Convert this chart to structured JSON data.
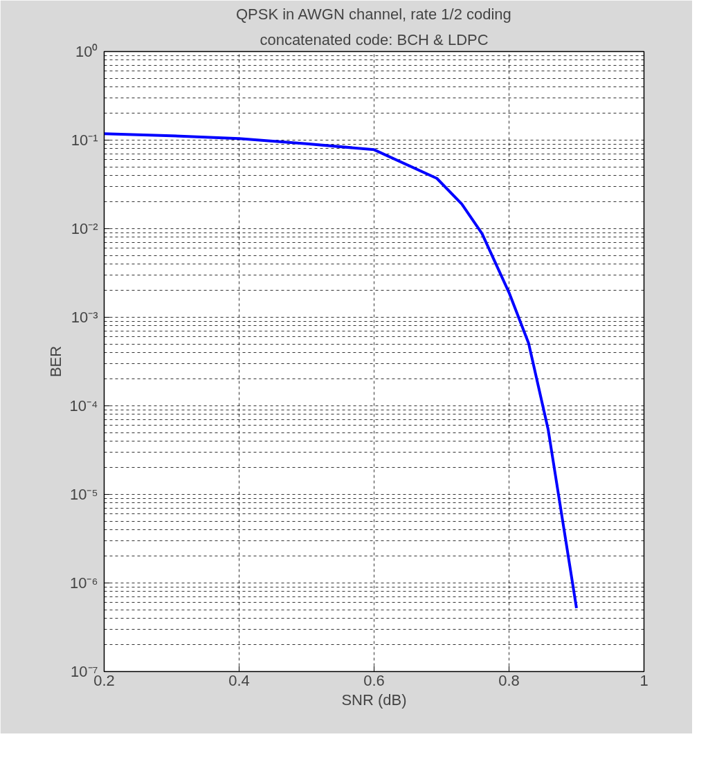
{
  "chart_data": {
    "type": "line",
    "title": "QPSK in AWGN channel, rate 1/2 coding",
    "subtitle": "concatenated code: BCH & LDPC",
    "xlabel": "SNR (dB)",
    "ylabel": "BER",
    "x": [
      0.2,
      0.3,
      0.4,
      0.5,
      0.6,
      0.693,
      0.73,
      0.76,
      0.8,
      0.829,
      0.858,
      0.9
    ],
    "series": [
      {
        "color": "#0000ff",
        "values": [
          0.118,
          0.112,
          0.104,
          0.091,
          0.078,
          0.037,
          0.019,
          0.0088,
          0.0019,
          0.00051,
          5.4e-05,
          5.2e-07
        ]
      }
    ],
    "log": "y",
    "grid": true,
    "line_style": "solid",
    "marker": "none",
    "xlim": [
      0.2,
      1
    ],
    "xticks": [
      0.2,
      0.4,
      0.6,
      0.8,
      1
    ],
    "ylim": [
      1e-07,
      1
    ],
    "yticks": [
      {
        "value": 1e-07,
        "label": "10⁻⁷"
      },
      {
        "value": 1e-06,
        "label": "10⁻⁶"
      },
      {
        "value": 1e-05,
        "label": "10⁻⁵"
      },
      {
        "value": 0.0001,
        "label": "10⁻⁴"
      },
      {
        "value": 0.001,
        "label": "10⁻³"
      },
      {
        "value": 0.01,
        "label": "10⁻²"
      },
      {
        "value": 0.1,
        "label": "10⁻¹"
      },
      {
        "value": 1,
        "label": "10⁰"
      }
    ]
  }
}
